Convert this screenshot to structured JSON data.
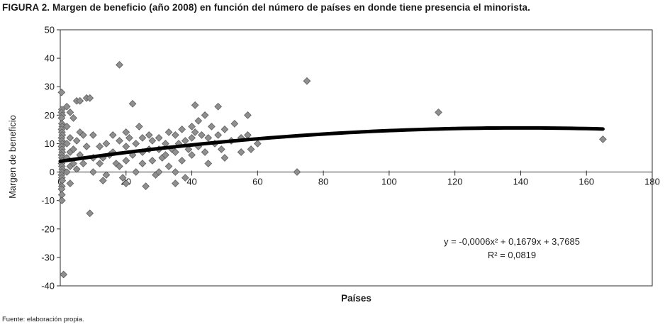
{
  "figure": {
    "title": "FIGURA 2. Margen de beneficio (año 2008) en función del número de países en donde tiene presencia el minorista.",
    "source": "Fuente: elaboración propia.",
    "equation_line1": "y =  -0,0006x² + 0,1679x + 3,7685",
    "equation_line2": "R² = 0,0819"
  },
  "chart_data": {
    "type": "scatter",
    "title": "Margen de beneficio (año 2008) en función del número de países en donde tiene presencia el minorista",
    "xlabel": "Países",
    "ylabel": "Margen de beneficio",
    "xlim": [
      0,
      180
    ],
    "ylim": [
      -40,
      50
    ],
    "xticks": [
      0,
      20,
      40,
      60,
      80,
      100,
      120,
      140,
      160,
      180
    ],
    "yticks": [
      50,
      40,
      30,
      20,
      10,
      0,
      -10,
      -20,
      -30,
      -40
    ],
    "grid": false,
    "legend": false,
    "marker": {
      "shape": "diamond",
      "color": "#8f8f8f",
      "stroke": "#5e5e5e"
    },
    "points": [
      [
        0.4,
        28
      ],
      [
        0.5,
        22
      ],
      [
        0.4,
        21
      ],
      [
        0.6,
        20
      ],
      [
        0.4,
        19
      ],
      [
        0.5,
        17
      ],
      [
        0.6,
        16
      ],
      [
        0.4,
        15
      ],
      [
        0.5,
        14
      ],
      [
        0.6,
        13
      ],
      [
        0.4,
        12
      ],
      [
        0.5,
        11
      ],
      [
        0.6,
        10
      ],
      [
        0.4,
        9
      ],
      [
        0.5,
        8
      ],
      [
        0.6,
        7
      ],
      [
        0.4,
        6
      ],
      [
        0.5,
        5
      ],
      [
        0.6,
        4
      ],
      [
        0.4,
        3
      ],
      [
        0.5,
        2
      ],
      [
        0.6,
        1
      ],
      [
        0.5,
        0
      ],
      [
        0.4,
        -1
      ],
      [
        0.5,
        -2
      ],
      [
        0.6,
        -3
      ],
      [
        0.5,
        -5
      ],
      [
        0.4,
        -6
      ],
      [
        0.5,
        -8
      ],
      [
        0.5,
        -10
      ],
      [
        1,
        -36
      ],
      [
        2,
        23
      ],
      [
        2,
        16
      ],
      [
        2,
        10
      ],
      [
        2,
        5
      ],
      [
        2,
        0
      ],
      [
        3,
        21
      ],
      [
        3,
        12
      ],
      [
        3,
        7
      ],
      [
        3,
        2
      ],
      [
        3,
        -4
      ],
      [
        4,
        19
      ],
      [
        4,
        8
      ],
      [
        4,
        3
      ],
      [
        5,
        25
      ],
      [
        5,
        11
      ],
      [
        5,
        1
      ],
      [
        6,
        25
      ],
      [
        6,
        14
      ],
      [
        6,
        6
      ],
      [
        7,
        13
      ],
      [
        7,
        3
      ],
      [
        8,
        26
      ],
      [
        8,
        9
      ],
      [
        9,
        26
      ],
      [
        9,
        -14.5
      ],
      [
        10,
        13
      ],
      [
        10,
        5
      ],
      [
        10,
        0
      ],
      [
        12,
        9
      ],
      [
        12,
        3
      ],
      [
        13,
        5
      ],
      [
        13,
        -3
      ],
      [
        14,
        10
      ],
      [
        14,
        -1
      ],
      [
        15,
        6
      ],
      [
        16,
        13
      ],
      [
        16,
        7
      ],
      [
        17,
        3
      ],
      [
        18,
        37.7
      ],
      [
        18,
        11
      ],
      [
        18,
        2
      ],
      [
        19,
        -2
      ],
      [
        20,
        14
      ],
      [
        20,
        9
      ],
      [
        20,
        4
      ],
      [
        20,
        -4
      ],
      [
        21,
        12
      ],
      [
        22,
        24
      ],
      [
        22,
        6
      ],
      [
        23,
        10
      ],
      [
        23,
        0
      ],
      [
        24,
        16
      ],
      [
        25,
        12
      ],
      [
        25,
        7
      ],
      [
        25,
        3
      ],
      [
        26,
        -5
      ],
      [
        27,
        13
      ],
      [
        27,
        8
      ],
      [
        28,
        11
      ],
      [
        28,
        4
      ],
      [
        29,
        -1
      ],
      [
        30,
        12
      ],
      [
        30,
        8
      ],
      [
        30,
        0
      ],
      [
        31,
        5
      ],
      [
        32,
        10
      ],
      [
        32,
        6
      ],
      [
        33,
        14
      ],
      [
        33,
        2
      ],
      [
        34,
        8
      ],
      [
        35,
        13
      ],
      [
        35,
        7
      ],
      [
        35,
        0
      ],
      [
        35,
        -4
      ],
      [
        36,
        10
      ],
      [
        37,
        15
      ],
      [
        37,
        4
      ],
      [
        38,
        11
      ],
      [
        38,
        -2
      ],
      [
        39,
        8
      ],
      [
        40,
        16
      ],
      [
        40,
        12
      ],
      [
        40,
        6
      ],
      [
        41,
        23.5
      ],
      [
        41,
        14
      ],
      [
        42,
        18
      ],
      [
        42,
        9
      ],
      [
        43,
        13
      ],
      [
        44,
        20
      ],
      [
        44,
        7
      ],
      [
        45,
        12
      ],
      [
        45,
        3
      ],
      [
        46,
        16
      ],
      [
        47,
        10
      ],
      [
        48,
        23
      ],
      [
        48,
        13
      ],
      [
        49,
        8
      ],
      [
        50,
        15
      ],
      [
        50,
        5
      ],
      [
        52,
        11
      ],
      [
        53,
        17
      ],
      [
        55,
        12
      ],
      [
        55,
        7
      ],
      [
        57,
        20
      ],
      [
        57,
        13
      ],
      [
        58,
        8
      ],
      [
        60,
        10
      ],
      [
        72,
        0
      ],
      [
        75,
        32
      ],
      [
        115,
        21
      ],
      [
        165,
        11.5
      ]
    ],
    "trendline": {
      "type": "quadratic",
      "a": -0.0006,
      "b": 0.1679,
      "c": 3.7685,
      "x_range": [
        0,
        165
      ],
      "color": "#000000",
      "r_squared": 0.0819,
      "equation_label": "y =  -0,0006x² + 0,1679x + 3,7685",
      "r2_label": "R² = 0,0819"
    }
  }
}
